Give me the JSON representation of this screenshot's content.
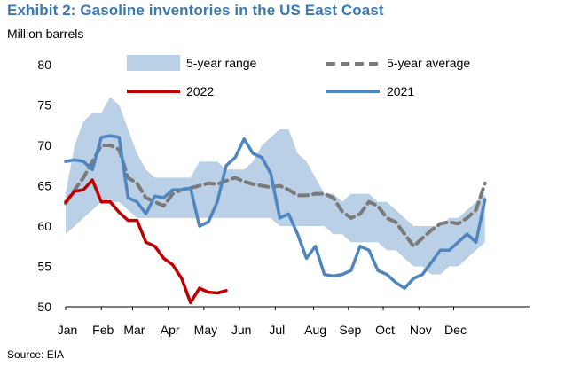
{
  "title": "Exhibit 2: Gasoline inventories in the US East Coast",
  "subtitle": "Million barrels",
  "source": "Source: EIA",
  "colors": {
    "title": "#3b78b4",
    "range_fill": "#b9d0e6",
    "average": "#7a7a7a",
    "y2022": "#c00000",
    "y2021": "#4f86c0"
  },
  "chart_data": {
    "type": "line",
    "ylim": [
      50,
      80
    ],
    "yticks": [
      50,
      55,
      60,
      65,
      70,
      75,
      80
    ],
    "xlim": [
      0,
      52
    ],
    "x_unit": "week of year",
    "month_labels": [
      "Jan",
      "Feb",
      "Mar",
      "Apr",
      "May",
      "Jun",
      "Jul",
      "Aug",
      "Sep",
      "Oct",
      "Nov",
      "Dec"
    ],
    "month_positions": [
      0,
      4,
      7.5,
      11.5,
      15.5,
      19.5,
      23.5,
      27.8,
      31.7,
      35.6,
      39.6,
      43.5
    ],
    "grid": false,
    "legend_position": "top, two columns",
    "series": [
      {
        "name": "5-year range",
        "kind": "band",
        "x": [
          0,
          1,
          2,
          3,
          4,
          5,
          6,
          7,
          8,
          9,
          10,
          11,
          12,
          13,
          14,
          15,
          16,
          17,
          18,
          19,
          20,
          21,
          22,
          23,
          24,
          25,
          26,
          27,
          28,
          29,
          30,
          31,
          32,
          33,
          34,
          35,
          36,
          37,
          38,
          39,
          40,
          41,
          42,
          43,
          44,
          45,
          46,
          47
        ],
        "upper": [
          64,
          70,
          73,
          74,
          74,
          76,
          75,
          72,
          69,
          67,
          66,
          66,
          66,
          66,
          66,
          68,
          68,
          68,
          67,
          67,
          67,
          68,
          70,
          71,
          72,
          72,
          69,
          68,
          66,
          64,
          64,
          63,
          64,
          64,
          64,
          63,
          63,
          62,
          61,
          60,
          60,
          60,
          60,
          61,
          61,
          62,
          63,
          64
        ],
        "lower": [
          59,
          60,
          61,
          62,
          63,
          63,
          63,
          62,
          61,
          61,
          61,
          61,
          61,
          61,
          61,
          61,
          61,
          61,
          61,
          61,
          61,
          61,
          61,
          61,
          60,
          60,
          60,
          60,
          60,
          60,
          59,
          59,
          58,
          58,
          58,
          58,
          57,
          57,
          56,
          55,
          55,
          54,
          54,
          55,
          55,
          56,
          57,
          58
        ]
      },
      {
        "name": "5-year average",
        "kind": "line",
        "style": "dashed",
        "x": [
          0,
          1,
          2,
          3,
          4,
          5,
          6,
          7,
          8,
          9,
          10,
          11,
          12,
          13,
          14,
          15,
          16,
          17,
          18,
          19,
          20,
          21,
          22,
          23,
          24,
          25,
          26,
          27,
          28,
          29,
          30,
          31,
          32,
          33,
          34,
          35,
          36,
          37,
          38,
          39,
          40,
          41,
          42,
          43,
          44,
          45,
          46,
          47
        ],
        "values": [
          62.8,
          64.5,
          66,
          68,
          70,
          70,
          69.5,
          66,
          65.3,
          63.5,
          63,
          62.5,
          64,
          64.5,
          64.7,
          65,
          65.3,
          65.2,
          65.6,
          66,
          65.5,
          65.2,
          65,
          64.8,
          65,
          64.5,
          63.8,
          63.8,
          64,
          64,
          63.5,
          61.8,
          61,
          61.5,
          63,
          62.5,
          61,
          60.5,
          59,
          57.5,
          58.5,
          59.5,
          60.3,
          60.5,
          60.3,
          61,
          62,
          65.3
        ]
      },
      {
        "name": "2022",
        "kind": "line",
        "x": [
          0,
          1,
          2,
          3,
          4,
          5,
          6,
          7,
          8,
          9,
          10,
          11,
          12,
          13,
          14,
          15,
          16,
          17,
          18
        ],
        "values": [
          63,
          64.3,
          64.5,
          65.7,
          63,
          63,
          61.7,
          60.7,
          60.7,
          58,
          57.5,
          56,
          55.2,
          53.5,
          50.5,
          52.3,
          51.8,
          51.7,
          52
        ]
      },
      {
        "name": "2021",
        "kind": "line",
        "x": [
          0,
          1,
          2,
          3,
          4,
          5,
          6,
          7,
          8,
          9,
          10,
          11,
          12,
          13,
          14,
          15,
          16,
          17,
          18,
          19,
          20,
          21,
          22,
          23,
          24,
          25,
          26,
          27,
          28,
          29,
          30,
          31,
          32,
          33,
          34,
          35,
          36,
          37,
          38,
          39,
          40,
          41,
          42,
          43,
          44,
          45,
          46,
          47
        ],
        "values": [
          68,
          68.2,
          68,
          67,
          71,
          71.2,
          71,
          63.5,
          63,
          61.5,
          63.7,
          63.5,
          64.5,
          64.5,
          64.7,
          60,
          60.5,
          63,
          67.5,
          68.5,
          70.8,
          69,
          68.5,
          66.5,
          61,
          61.5,
          59,
          56,
          57.5,
          54,
          53.8,
          54,
          54.5,
          57.5,
          57,
          54.5,
          54,
          53,
          52.3,
          53.5,
          54,
          55.5,
          57,
          57,
          58,
          59,
          58,
          63.3
        ]
      }
    ]
  }
}
